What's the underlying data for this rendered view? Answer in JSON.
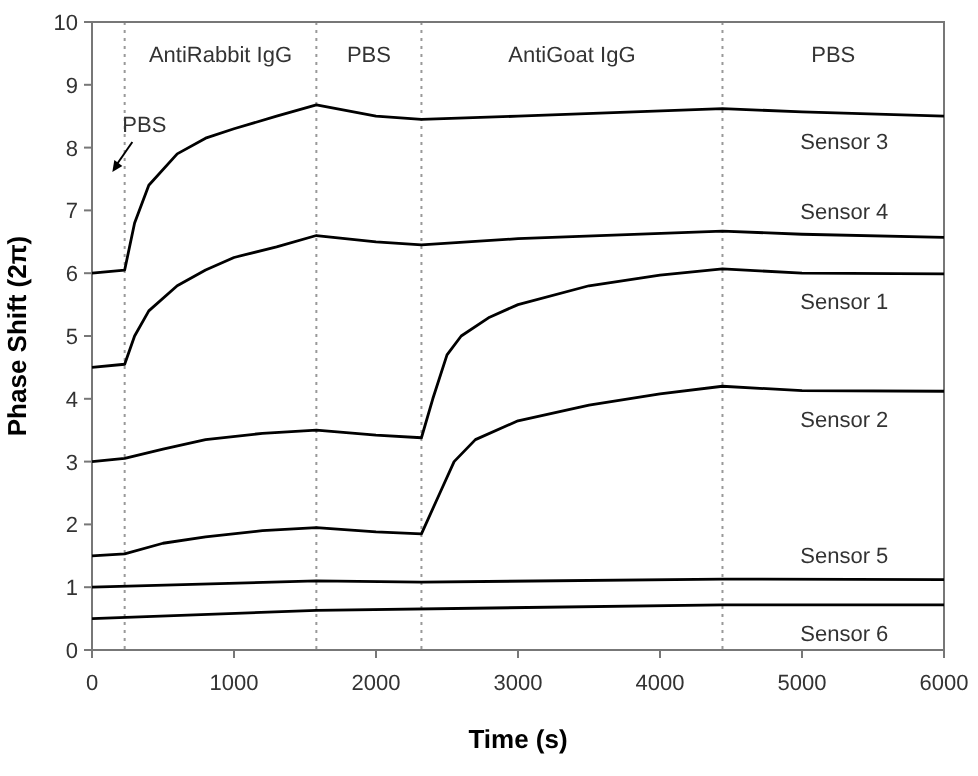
{
  "chart_data": {
    "type": "line",
    "xlabel": "Time (s)",
    "ylabel": "Phase Shift (2π)",
    "xlim": [
      0,
      6000
    ],
    "ylim": [
      0,
      10
    ],
    "xticks": [
      0,
      1000,
      2000,
      3000,
      4000,
      5000,
      6000
    ],
    "yticks": [
      0,
      1,
      2,
      3,
      4,
      5,
      6,
      7,
      8,
      9,
      10
    ],
    "grid": false,
    "marker": "none",
    "line_style": "solid",
    "series": [
      {
        "name": "Sensor 3",
        "color": "#000000",
        "x": [
          0,
          230,
          300,
          400,
          600,
          800,
          1000,
          1300,
          1580,
          2000,
          2320,
          3000,
          4440,
          5000,
          6000
        ],
        "values": [
          6.0,
          6.05,
          6.8,
          7.4,
          7.9,
          8.15,
          8.3,
          8.5,
          8.68,
          8.5,
          8.45,
          8.5,
          8.62,
          8.57,
          8.5
        ]
      },
      {
        "name": "Sensor 4",
        "color": "#000000",
        "x": [
          0,
          230,
          300,
          400,
          600,
          800,
          1000,
          1300,
          1580,
          2000,
          2320,
          3000,
          4440,
          5000,
          6000
        ],
        "values": [
          4.5,
          4.55,
          5.0,
          5.4,
          5.8,
          6.05,
          6.25,
          6.42,
          6.6,
          6.5,
          6.45,
          6.55,
          6.67,
          6.62,
          6.57
        ]
      },
      {
        "name": "Sensor 1",
        "color": "#000000",
        "x": [
          0,
          230,
          500,
          800,
          1200,
          1580,
          2000,
          2320,
          2400,
          2500,
          2600,
          2800,
          3000,
          3500,
          4000,
          4440,
          5000,
          6000
        ],
        "values": [
          3.0,
          3.05,
          3.2,
          3.35,
          3.45,
          3.5,
          3.42,
          3.38,
          4.0,
          4.7,
          5.0,
          5.3,
          5.5,
          5.8,
          5.97,
          6.07,
          6.0,
          5.99
        ]
      },
      {
        "name": "Sensor 2",
        "color": "#000000",
        "x": [
          0,
          230,
          500,
          800,
          1200,
          1580,
          2000,
          2320,
          2450,
          2550,
          2700,
          3000,
          3500,
          4000,
          4440,
          5000,
          6000
        ],
        "values": [
          1.5,
          1.53,
          1.7,
          1.8,
          1.9,
          1.95,
          1.88,
          1.85,
          2.5,
          3.0,
          3.35,
          3.65,
          3.9,
          4.08,
          4.2,
          4.13,
          4.12
        ]
      },
      {
        "name": "Sensor 5",
        "color": "#000000",
        "x": [
          0,
          1580,
          2320,
          4440,
          6000
        ],
        "values": [
          1.0,
          1.1,
          1.08,
          1.13,
          1.12
        ]
      },
      {
        "name": "Sensor 6",
        "color": "#000000",
        "x": [
          0,
          1580,
          4440,
          6000
        ],
        "values": [
          0.5,
          0.63,
          0.72,
          0.72
        ]
      }
    ],
    "ref_lines": [
      {
        "axis": "x",
        "value": 230,
        "color": "#999999",
        "line_style": "dotted"
      },
      {
        "axis": "x",
        "value": 1580,
        "color": "#999999",
        "line_style": "dotted"
      },
      {
        "axis": "x",
        "value": 2320,
        "color": "#999999",
        "line_style": "dotted"
      },
      {
        "axis": "x",
        "value": 4440,
        "color": "#999999",
        "line_style": "dotted"
      }
    ],
    "annotations": [
      "PBS",
      "AntiRabbit IgG",
      "PBS",
      "AntiGoat IgG",
      "PBS"
    ]
  }
}
